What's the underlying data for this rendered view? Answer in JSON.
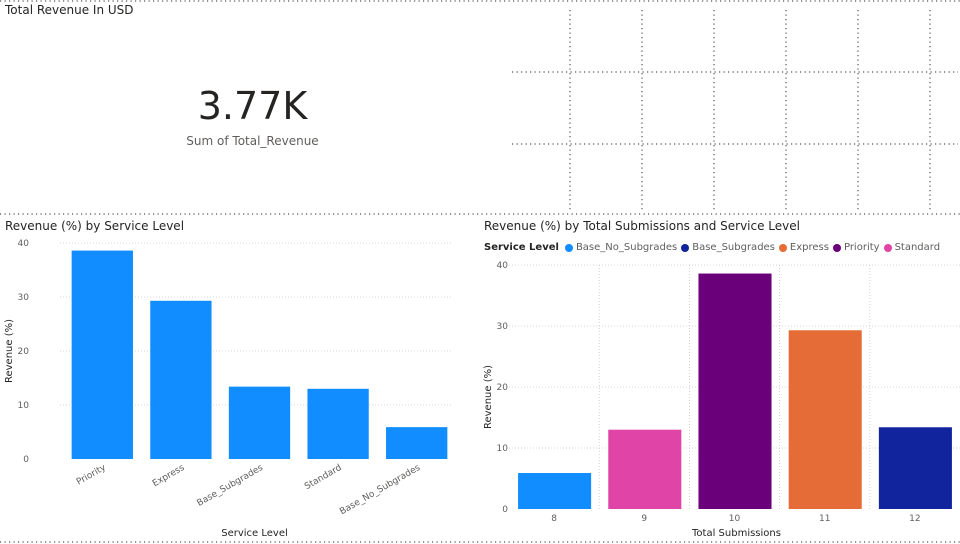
{
  "kpi": {
    "title": "Total Revenue In USD",
    "value": "3.77K",
    "label": "Sum of Total_Revenue"
  },
  "chart_data": [
    {
      "type": "bar",
      "title": "Revenue (%) by Service Level",
      "xlabel": "Service Level",
      "ylabel": "Revenue (%)",
      "categories": [
        "Priority",
        "Express",
        "Base_Subgrades",
        "Standard",
        "Base_No_Subgrades"
      ],
      "values": [
        38.6,
        29.3,
        13.4,
        13.0,
        5.9
      ],
      "ylim": [
        0,
        40
      ],
      "yticks": [
        0,
        10,
        20,
        30,
        40
      ],
      "color": "#118DFF",
      "grid": true
    },
    {
      "type": "bar",
      "title": "Revenue (%) by Total Submissions and Service Level",
      "xlabel": "Total Submissions",
      "ylabel": "Revenue (%)",
      "legend_title": "Service Level",
      "legend": [
        {
          "name": "Base_No_Subgrades",
          "color": "#118DFF"
        },
        {
          "name": "Base_Subgrades",
          "color": "#12239E"
        },
        {
          "name": "Express",
          "color": "#E66C37"
        },
        {
          "name": "Priority",
          "color": "#6B007B"
        },
        {
          "name": "Standard",
          "color": "#E044A7"
        }
      ],
      "categories": [
        "8",
        "9",
        "10",
        "11",
        "12"
      ],
      "values": [
        5.9,
        13.0,
        38.6,
        29.3,
        13.4
      ],
      "bar_series": [
        "Base_No_Subgrades",
        "Standard",
        "Priority",
        "Express",
        "Base_Subgrades"
      ],
      "ylim": [
        0,
        40
      ],
      "yticks": [
        0,
        10,
        20,
        30,
        40
      ],
      "legend_position": "top-left",
      "grid": true
    }
  ]
}
